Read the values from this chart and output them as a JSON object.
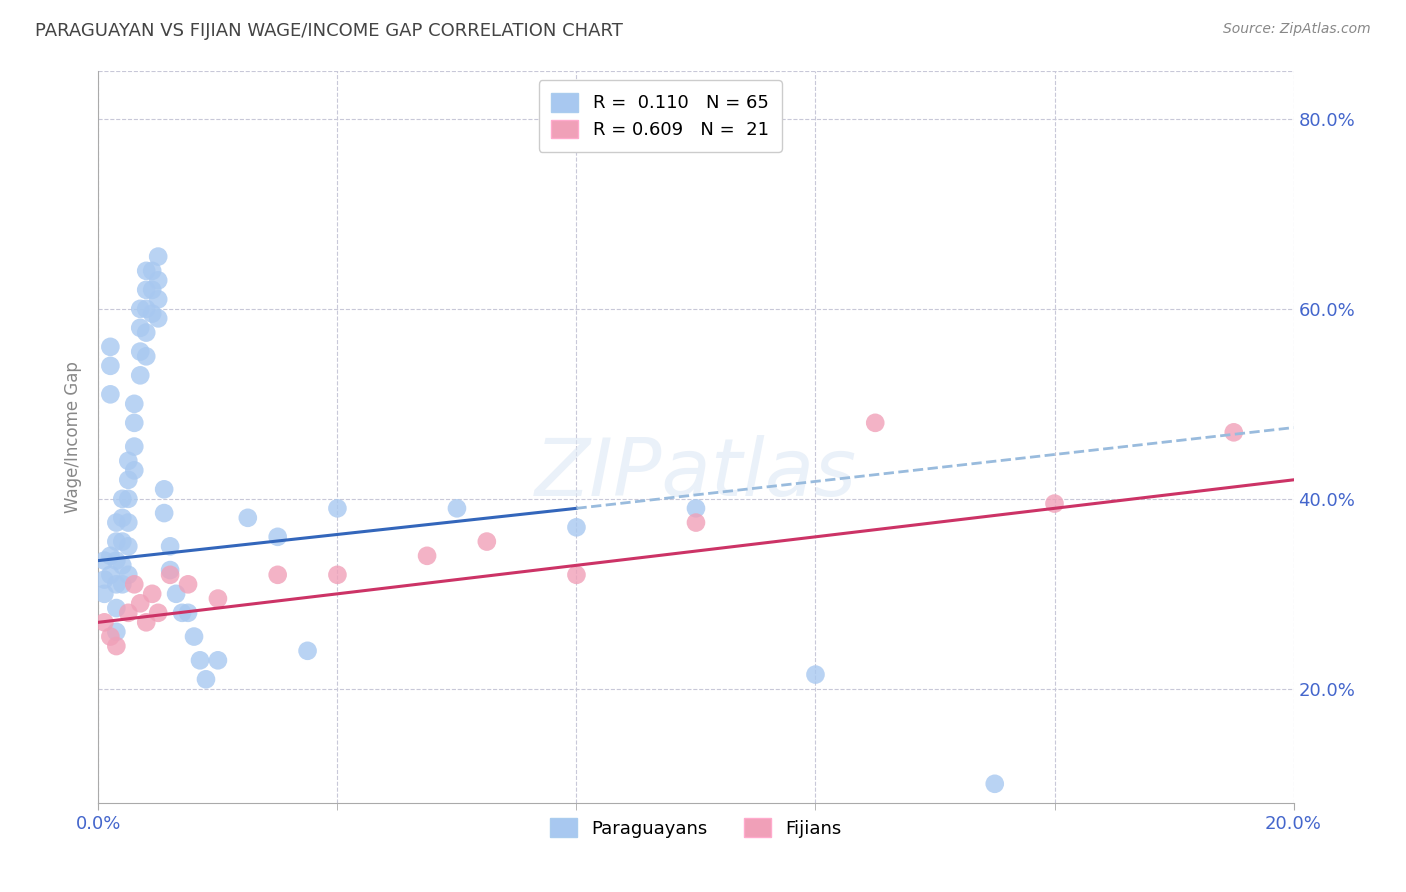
{
  "title": "PARAGUAYAN VS FIJIAN WAGE/INCOME GAP CORRELATION CHART",
  "source": "Source: ZipAtlas.com",
  "ylabel": "Wage/Income Gap",
  "legend_label_paraguayan": "Paraguayans",
  "legend_label_fijian": "Fijians",
  "watermark": "ZIPatlas",
  "paraguayan_color": "#a8c8f0",
  "fijian_color": "#f0a0b8",
  "trend_paraguayan_solid_color": "#3366bb",
  "trend_paraguayan_dash_color": "#99bbdd",
  "trend_fijian_color": "#cc3366",
  "background_color": "#ffffff",
  "grid_color": "#c8c8d8",
  "title_color": "#444444",
  "axis_label_color": "#4466cc",
  "right_ytick_color": "#4466cc",
  "x_min": 0.0,
  "x_max": 0.2,
  "y_min": 0.08,
  "y_max": 0.85,
  "paraguayan_x": [
    0.001,
    0.001,
    0.001,
    0.002,
    0.002,
    0.002,
    0.002,
    0.002,
    0.003,
    0.003,
    0.003,
    0.003,
    0.003,
    0.003,
    0.004,
    0.004,
    0.004,
    0.004,
    0.004,
    0.005,
    0.005,
    0.005,
    0.005,
    0.005,
    0.005,
    0.006,
    0.006,
    0.006,
    0.006,
    0.007,
    0.007,
    0.007,
    0.007,
    0.008,
    0.008,
    0.008,
    0.008,
    0.008,
    0.009,
    0.009,
    0.009,
    0.01,
    0.01,
    0.01,
    0.01,
    0.011,
    0.011,
    0.012,
    0.012,
    0.013,
    0.014,
    0.015,
    0.016,
    0.017,
    0.018,
    0.02,
    0.025,
    0.03,
    0.035,
    0.04,
    0.06,
    0.08,
    0.1,
    0.12,
    0.15
  ],
  "paraguayan_y": [
    0.335,
    0.315,
    0.3,
    0.56,
    0.54,
    0.51,
    0.34,
    0.32,
    0.375,
    0.355,
    0.335,
    0.31,
    0.285,
    0.26,
    0.4,
    0.38,
    0.355,
    0.33,
    0.31,
    0.44,
    0.42,
    0.4,
    0.375,
    0.35,
    0.32,
    0.5,
    0.48,
    0.455,
    0.43,
    0.6,
    0.58,
    0.555,
    0.53,
    0.64,
    0.62,
    0.6,
    0.575,
    0.55,
    0.64,
    0.62,
    0.595,
    0.655,
    0.63,
    0.61,
    0.59,
    0.41,
    0.385,
    0.35,
    0.325,
    0.3,
    0.28,
    0.28,
    0.255,
    0.23,
    0.21,
    0.23,
    0.38,
    0.36,
    0.24,
    0.39,
    0.39,
    0.37,
    0.39,
    0.215,
    0.1
  ],
  "fijian_x": [
    0.001,
    0.002,
    0.003,
    0.005,
    0.006,
    0.007,
    0.008,
    0.009,
    0.01,
    0.012,
    0.015,
    0.02,
    0.03,
    0.04,
    0.055,
    0.065,
    0.08,
    0.1,
    0.13,
    0.16,
    0.19
  ],
  "fijian_y": [
    0.27,
    0.255,
    0.245,
    0.28,
    0.31,
    0.29,
    0.27,
    0.3,
    0.28,
    0.32,
    0.31,
    0.295,
    0.32,
    0.32,
    0.34,
    0.355,
    0.32,
    0.375,
    0.48,
    0.395,
    0.47
  ],
  "trend_p_x0": 0.0,
  "trend_p_y0": 0.335,
  "trend_p_x1": 0.08,
  "trend_p_y1": 0.39,
  "trend_p_dash_x1": 0.2,
  "trend_p_dash_y1": 0.475,
  "trend_f_x0": 0.0,
  "trend_f_y0": 0.27,
  "trend_f_x1": 0.2,
  "trend_f_y1": 0.42
}
